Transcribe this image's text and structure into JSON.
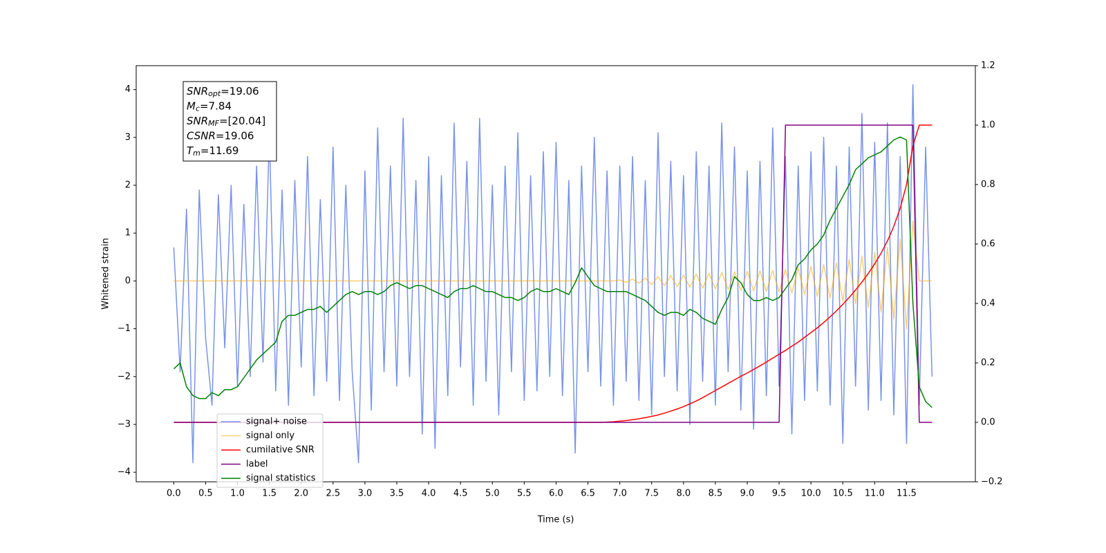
{
  "chart_data": {
    "type": "line",
    "xlabel": "Time (s)",
    "ylabel": "Whitened strain",
    "xlim": [
      -0.59,
      12.58
    ],
    "ylim": [
      -4.2,
      4.5
    ],
    "y2lim": [
      -0.2,
      1.2
    ],
    "xticks": [
      {
        "value": 0,
        "label": "0.0"
      },
      {
        "value": 0.5,
        "label": "0.5"
      },
      {
        "value": 1,
        "label": "1.0"
      },
      {
        "value": 1.5,
        "label": "1.5"
      },
      {
        "value": 2,
        "label": "2.0"
      },
      {
        "value": 2.5,
        "label": "2.5"
      },
      {
        "value": 3,
        "label": "3.0"
      },
      {
        "value": 3.5,
        "label": "3.5"
      },
      {
        "value": 4,
        "label": "4.0"
      },
      {
        "value": 4.5,
        "label": "4.5"
      },
      {
        "value": 5,
        "label": "5.0"
      },
      {
        "value": 5.5,
        "label": "5.5"
      },
      {
        "value": 6,
        "label": "6.0"
      },
      {
        "value": 6.5,
        "label": "6.5"
      },
      {
        "value": 7,
        "label": "7.0"
      },
      {
        "value": 7.5,
        "label": "7.5"
      },
      {
        "value": 8,
        "label": "8.0"
      },
      {
        "value": 8.5,
        "label": "8.5"
      },
      {
        "value": 9,
        "label": "9.0"
      },
      {
        "value": 9.5,
        "label": "9.5"
      },
      {
        "value": 10,
        "label": "10.0"
      },
      {
        "value": 10.5,
        "label": "10.5"
      },
      {
        "value": 11,
        "label": "11.0"
      },
      {
        "value": 11.5,
        "label": "11.5"
      }
    ],
    "yticks": [
      {
        "value": -4,
        "label": "−4"
      },
      {
        "value": -3,
        "label": "−3"
      },
      {
        "value": -2,
        "label": "−2"
      },
      {
        "value": -1,
        "label": "−1"
      },
      0,
      1,
      2,
      3,
      4
    ],
    "y2ticks": [
      {
        "value": -0.2,
        "label": "−0.2"
      },
      {
        "value": 0,
        "label": "0.0"
      },
      {
        "value": 0.2,
        "label": "0.2"
      },
      {
        "value": 0.4,
        "label": "0.4"
      },
      {
        "value": 0.6,
        "label": "0.6"
      },
      {
        "value": 0.8,
        "label": "0.8"
      },
      {
        "value": 1,
        "label": "1.0"
      },
      {
        "value": 1.2,
        "label": "1.2"
      }
    ],
    "legend": "lower left",
    "annotation": [
      {
        "base": "SNR",
        "sub": "opt",
        "rest": "=19.06"
      },
      {
        "base": "M",
        "sub": "c",
        "rest": "=7.84"
      },
      {
        "base": "SNR",
        "sub": "MF",
        "rest": "=[20.04]"
      },
      {
        "base": "CSNR",
        "sub": null,
        "rest": "=19.06"
      },
      {
        "base": "T",
        "sub": "m",
        "rest": "=11.69"
      }
    ],
    "x": [
      0,
      0.1,
      0.2,
      0.3,
      0.4,
      0.5,
      0.6,
      0.7,
      0.8,
      0.9,
      1,
      1.1,
      1.2,
      1.3,
      1.4,
      1.5,
      1.6,
      1.7,
      1.8,
      1.9,
      2,
      2.1,
      2.2,
      2.3,
      2.4,
      2.5,
      2.6,
      2.7,
      2.8,
      2.9,
      3,
      3.1,
      3.2,
      3.3,
      3.4,
      3.5,
      3.6,
      3.7,
      3.8,
      3.9,
      4,
      4.1,
      4.2,
      4.3,
      4.4,
      4.5,
      4.6,
      4.7,
      4.8,
      4.9,
      5,
      5.1,
      5.2,
      5.3,
      5.4,
      5.5,
      5.6,
      5.7,
      5.8,
      5.9,
      6,
      6.1,
      6.2,
      6.3,
      6.4,
      6.5,
      6.6,
      6.7,
      6.8,
      6.9,
      7,
      7.1,
      7.2,
      7.3,
      7.4,
      7.5,
      7.6,
      7.7,
      7.8,
      7.9,
      8,
      8.1,
      8.2,
      8.3,
      8.4,
      8.5,
      8.6,
      8.7,
      8.8,
      8.9,
      9,
      9.1,
      9.2,
      9.3,
      9.4,
      9.5,
      9.6,
      9.7,
      9.8,
      9.9,
      10,
      10.1,
      10.2,
      10.3,
      10.4,
      10.5,
      10.6,
      10.7,
      10.8,
      10.9,
      11,
      11.1,
      11.2,
      11.3,
      11.4,
      11.5,
      11.6,
      11.7,
      11.8,
      11.9
    ],
    "series": [
      {
        "name": "signal+ noise",
        "color": "#7893e8",
        "alpha": 1,
        "axis": "y",
        "values": [
          0.7,
          -1.9,
          1.5,
          -3.8,
          1.9,
          -1.2,
          -2.6,
          1.8,
          -1.4,
          2.0,
          -2.2,
          1.6,
          -2.0,
          2.4,
          -1.7,
          3.1,
          -2.3,
          1.9,
          -2.6,
          2.1,
          -1.8,
          2.6,
          -2.4,
          1.7,
          -2.1,
          2.8,
          -2.5,
          2.0,
          -1.9,
          -3.8,
          2.3,
          -2.7,
          3.2,
          -1.9,
          2.4,
          -2.2,
          3.4,
          -2.0,
          2.1,
          -3.2,
          2.6,
          -3.5,
          2.2,
          -2.4,
          3.3,
          -1.8,
          2.5,
          -2.6,
          3.4,
          -2.1,
          2.0,
          -2.8,
          2.4,
          -1.9,
          3.1,
          -2.5,
          2.2,
          -2.3,
          2.7,
          -2.0,
          2.9,
          -2.4,
          2.1,
          -3.6,
          2.4,
          -1.9,
          3.0,
          -2.2,
          2.3,
          -2.6,
          2.4,
          -2.1,
          2.6,
          -2.5,
          2.1,
          -2.8,
          3.1,
          -2.0,
          2.5,
          -2.3,
          2.2,
          -3.0,
          2.7,
          -2.1,
          2.4,
          -2.6,
          3.3,
          -1.9,
          2.8,
          -2.7,
          2.3,
          -3.1,
          2.5,
          -2.4,
          3.2,
          -2.2,
          2.6,
          -3.2,
          2.4,
          -2.5,
          2.7,
          -2.3,
          3.0,
          -2.6,
          2.4,
          -3.4,
          2.8,
          -2.2,
          3.5,
          -2.7,
          2.9,
          -2.5,
          3.3,
          -2.8,
          2.6,
          -3.4,
          4.1,
          -2.6,
          2.8,
          -2.0
        ]
      },
      {
        "name": "signal only",
        "color": "#ffa500",
        "alpha": 0.55,
        "axis": "y",
        "values": [
          0,
          0,
          0,
          0,
          0,
          0,
          0,
          0,
          0,
          0,
          0,
          0,
          0,
          0,
          0,
          0,
          0,
          0,
          0,
          0,
          0,
          0,
          0,
          0,
          0,
          0,
          0,
          0,
          0,
          0,
          0,
          0,
          0,
          0,
          0,
          0,
          0,
          0,
          0,
          0,
          0,
          0,
          0,
          0,
          0,
          0,
          0,
          0,
          0,
          0,
          0,
          0,
          0,
          0,
          0,
          0,
          0,
          0,
          0,
          0,
          0,
          0,
          0,
          0,
          0,
          0,
          0,
          0,
          0,
          0,
          0.02,
          -0.03,
          0.04,
          -0.05,
          0.06,
          -0.08,
          0.09,
          -0.1,
          0.11,
          -0.12,
          0.12,
          -0.13,
          0.14,
          -0.15,
          0.16,
          -0.17,
          0.18,
          -0.18,
          0.19,
          -0.2,
          0.2,
          -0.21,
          0.21,
          -0.22,
          0.22,
          -0.23,
          0.24,
          -0.25,
          0.27,
          -0.28,
          0.3,
          -0.32,
          0.34,
          -0.36,
          0.38,
          -0.42,
          0.45,
          -0.48,
          0.52,
          -0.56,
          0.6,
          -0.65,
          0.7,
          -0.8,
          0.88,
          -1.0,
          1.25,
          0,
          0,
          0
        ]
      },
      {
        "name": "cumilative SNR",
        "color": "#ff0000",
        "alpha": 1,
        "axis": "y2",
        "values": [
          0,
          0,
          0,
          0,
          0,
          0,
          0,
          0,
          0,
          0,
          0,
          0,
          0,
          0,
          0,
          0,
          0,
          0,
          0,
          0,
          0,
          0,
          0,
          0,
          0,
          0,
          0,
          0,
          0,
          0,
          0,
          0,
          0,
          0,
          0,
          0,
          0,
          0,
          0,
          0,
          0,
          0,
          0,
          0,
          0,
          0,
          0,
          0,
          0,
          0,
          0,
          0,
          0,
          0,
          0,
          0,
          0,
          0,
          0,
          0,
          0,
          0,
          0,
          0,
          0,
          0,
          0,
          0,
          0.001,
          0.002,
          0.004,
          0.006,
          0.009,
          0.012,
          0.016,
          0.02,
          0.025,
          0.031,
          0.038,
          0.045,
          0.053,
          0.062,
          0.072,
          0.083,
          0.095,
          0.107,
          0.119,
          0.131,
          0.143,
          0.155,
          0.166,
          0.178,
          0.19,
          0.203,
          0.216,
          0.229,
          0.242,
          0.256,
          0.27,
          0.286,
          0.302,
          0.318,
          0.336,
          0.355,
          0.375,
          0.397,
          0.42,
          0.445,
          0.472,
          0.501,
          0.533,
          0.569,
          0.61,
          0.659,
          0.72,
          0.8,
          0.93,
          1.0,
          1.0,
          1.0
        ]
      },
      {
        "name": "label",
        "color": "#800080",
        "alpha": 1,
        "axis": "y2",
        "values": [
          0,
          0,
          0,
          0,
          0,
          0,
          0,
          0,
          0,
          0,
          0,
          0,
          0,
          0,
          0,
          0,
          0,
          0,
          0,
          0,
          0,
          0,
          0,
          0,
          0,
          0,
          0,
          0,
          0,
          0,
          0,
          0,
          0,
          0,
          0,
          0,
          0,
          0,
          0,
          0,
          0,
          0,
          0,
          0,
          0,
          0,
          0,
          0,
          0,
          0,
          0,
          0,
          0,
          0,
          0,
          0,
          0,
          0,
          0,
          0,
          0,
          0,
          0,
          0,
          0,
          0,
          0,
          0,
          0,
          0,
          0,
          0,
          0,
          0,
          0,
          0,
          0,
          0,
          0,
          0,
          0,
          0,
          0,
          0,
          0,
          0,
          0,
          0,
          0,
          0,
          0,
          0,
          0,
          0,
          0,
          0,
          1,
          1,
          1,
          1,
          1,
          1,
          1,
          1,
          1,
          1,
          1,
          1,
          1,
          1,
          1,
          1,
          1,
          1,
          1,
          1,
          1,
          0,
          0,
          0
        ]
      },
      {
        "name": "signal statistics",
        "color": "#008000",
        "alpha": 1,
        "axis": "y2",
        "values": [
          0.18,
          0.2,
          0.12,
          0.09,
          0.08,
          0.08,
          0.1,
          0.09,
          0.11,
          0.11,
          0.12,
          0.15,
          0.18,
          0.21,
          0.23,
          0.25,
          0.27,
          0.34,
          0.36,
          0.36,
          0.37,
          0.38,
          0.38,
          0.39,
          0.37,
          0.39,
          0.41,
          0.43,
          0.44,
          0.43,
          0.44,
          0.44,
          0.43,
          0.44,
          0.46,
          0.47,
          0.46,
          0.45,
          0.46,
          0.46,
          0.45,
          0.44,
          0.43,
          0.42,
          0.44,
          0.45,
          0.45,
          0.46,
          0.45,
          0.44,
          0.44,
          0.43,
          0.42,
          0.42,
          0.41,
          0.42,
          0.44,
          0.45,
          0.44,
          0.44,
          0.45,
          0.44,
          0.43,
          0.47,
          0.52,
          0.49,
          0.46,
          0.45,
          0.44,
          0.44,
          0.44,
          0.44,
          0.43,
          0.42,
          0.41,
          0.39,
          0.37,
          0.36,
          0.37,
          0.37,
          0.36,
          0.38,
          0.37,
          0.35,
          0.34,
          0.33,
          0.38,
          0.42,
          0.49,
          0.47,
          0.43,
          0.41,
          0.41,
          0.42,
          0.41,
          0.42,
          0.45,
          0.48,
          0.53,
          0.55,
          0.58,
          0.6,
          0.63,
          0.68,
          0.72,
          0.76,
          0.8,
          0.85,
          0.87,
          0.89,
          0.9,
          0.91,
          0.93,
          0.95,
          0.96,
          0.95,
          0.4,
          0.12,
          0.07,
          0.05
        ]
      }
    ]
  }
}
